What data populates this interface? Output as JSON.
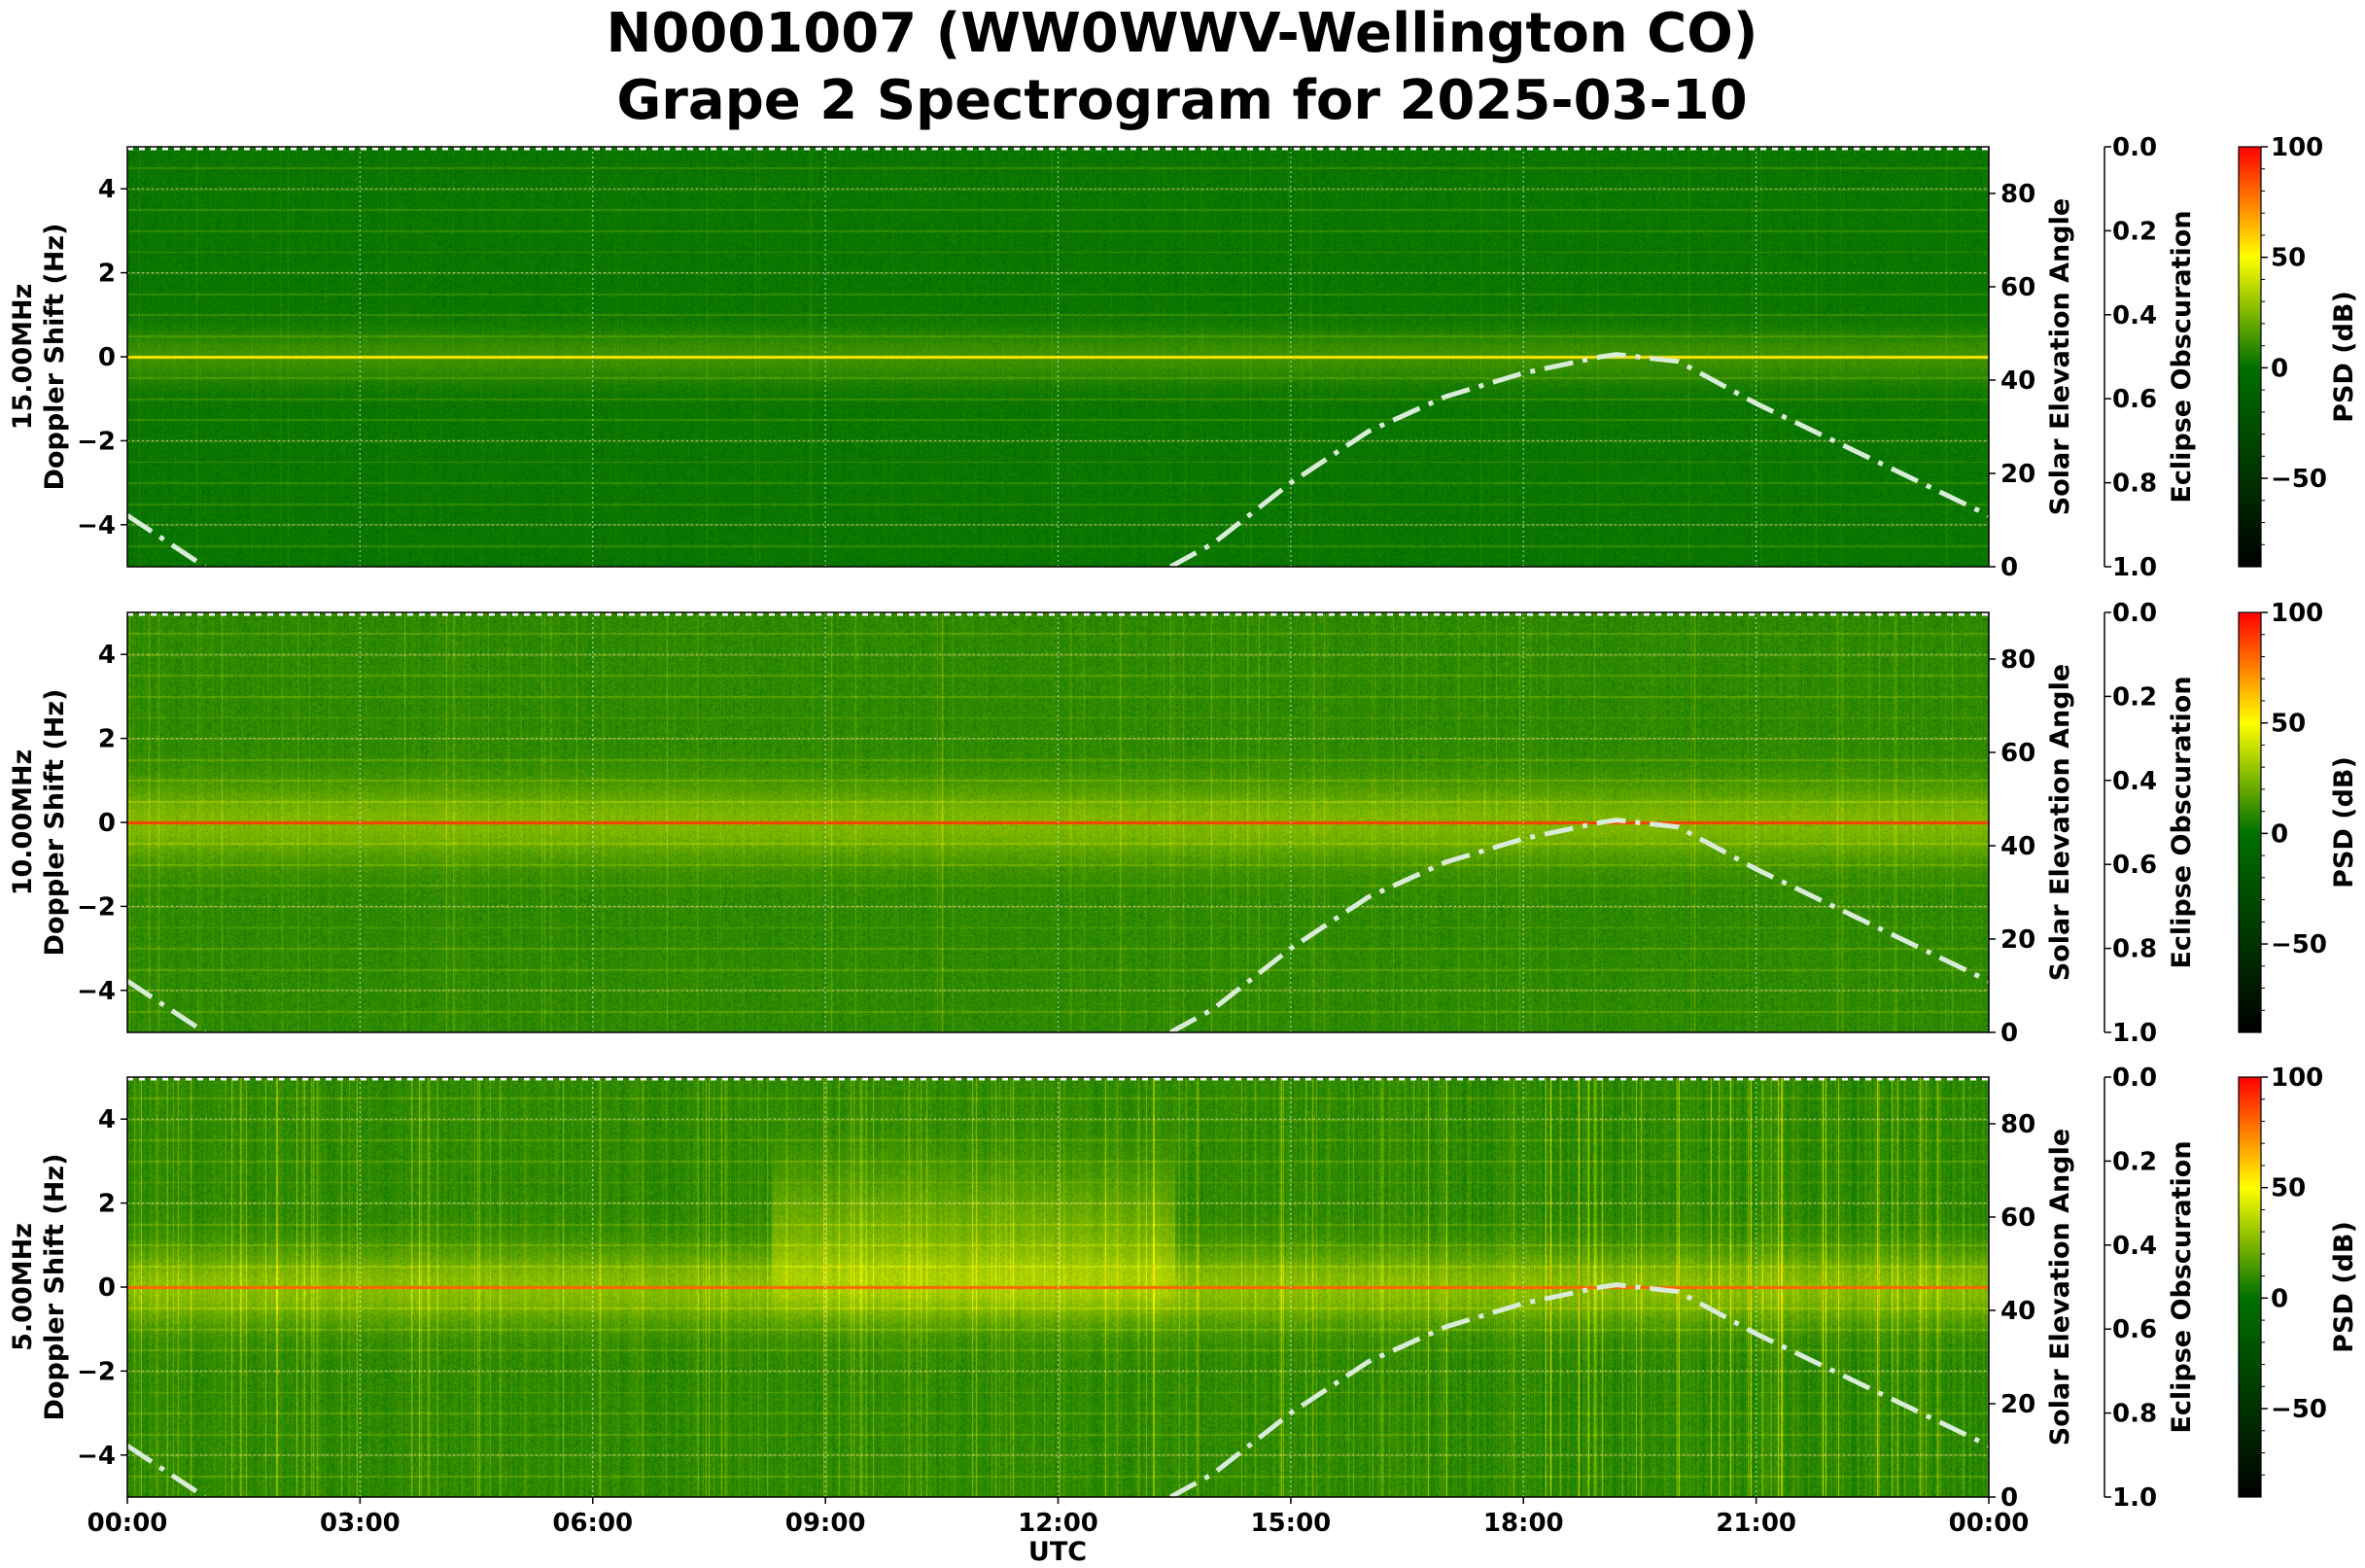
{
  "title_line1": "N0001007 (WW0WWV-Wellington CO)",
  "title_line2": "Grape 2 Spectrogram for 2025-03-10",
  "chart_data": [
    {
      "type": "heatmap",
      "panel_label": "15.00MHz",
      "ylabel": "Doppler Shift (Hz)",
      "y2label": "Solar Elevation Angle",
      "y3label": "Eclipse Obscuration",
      "colorbar_label": "PSD (dB)",
      "carrier_color": "#f5e000"
    },
    {
      "type": "heatmap",
      "panel_label": "10.00MHz",
      "ylabel": "Doppler Shift (Hz)",
      "y2label": "Solar Elevation Angle",
      "y3label": "Eclipse Obscuration",
      "colorbar_label": "PSD (dB)",
      "carrier_color": "#ff3000"
    },
    {
      "type": "heatmap",
      "panel_label": "5.00MHz",
      "ylabel": "Doppler Shift (Hz)",
      "y2label": "Solar Elevation Angle",
      "y3label": "Eclipse Obscuration",
      "colorbar_label": "PSD (dB)",
      "carrier_color": "#ff5000"
    }
  ],
  "axes": {
    "xlabel": "UTC",
    "xlim_hours": [
      0,
      24
    ],
    "x_ticks": [
      "00:00",
      "03:00",
      "06:00",
      "09:00",
      "12:00",
      "15:00",
      "18:00",
      "21:00",
      "00:00"
    ],
    "ylim": [
      -5,
      5
    ],
    "y_ticks": [
      "4",
      "2",
      "0",
      "−2",
      "−4"
    ],
    "y_tick_values": [
      4,
      2,
      0,
      -2,
      -4
    ],
    "y2lim": [
      0,
      90
    ],
    "y2_ticks": [
      "0",
      "20",
      "40",
      "60",
      "80"
    ],
    "y2_tick_values": [
      0,
      20,
      40,
      60,
      80
    ],
    "y3lim": [
      1.0,
      0.0
    ],
    "y3_ticks": [
      "0.0",
      "0.2",
      "0.4",
      "0.6",
      "0.8",
      "1.0"
    ],
    "y3_tick_values": [
      0,
      0.2,
      0.4,
      0.6,
      0.8,
      1.0
    ],
    "colorbar_lim": [
      -90,
      100
    ],
    "colorbar_ticks": [
      "100",
      "50",
      "0",
      "−50"
    ],
    "colorbar_tick_values": [
      100,
      50,
      0,
      -50
    ],
    "colormap": [
      "#000000",
      "#007000",
      "#ffff00",
      "#ff0000"
    ],
    "grid": true
  },
  "solar_elevation": {
    "style": "dash-dot",
    "color": "#d8ecd8",
    "hours": [
      0,
      0.5,
      1.0,
      13.45,
      14,
      15,
      16,
      17,
      18,
      19,
      19.2,
      20,
      21,
      22,
      23,
      24
    ],
    "degrees": [
      11,
      5.5,
      0,
      0,
      5,
      18,
      29,
      36.5,
      41.5,
      45,
      45.5,
      44,
      35,
      27,
      19,
      11
    ]
  }
}
